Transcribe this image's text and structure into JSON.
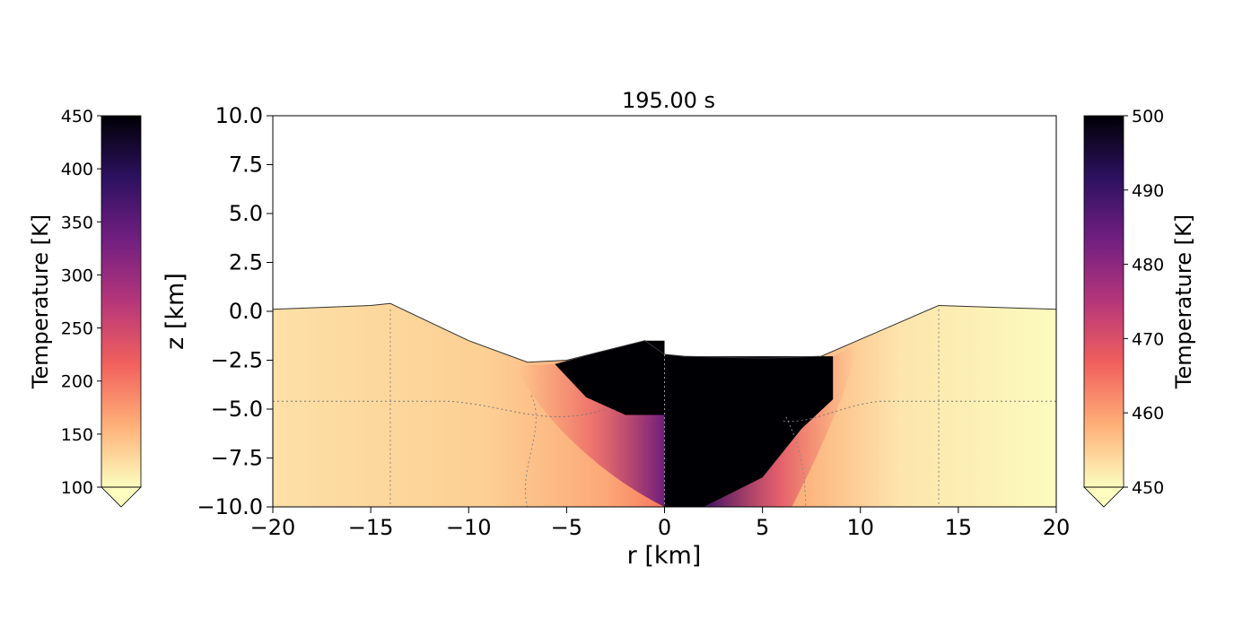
{
  "chart_data": {
    "type": "heatmap",
    "title": "195.00 s",
    "xlabel": "r [km]",
    "ylabel": "z [km]",
    "xlim": [
      -20,
      20
    ],
    "ylim": [
      -10,
      10
    ],
    "x_ticks": [
      -20,
      -15,
      -10,
      -5,
      0,
      5,
      10,
      15,
      20
    ],
    "x_tick_labels": [
      "−20",
      "−15",
      "−10",
      "−5",
      "0",
      "5",
      "10",
      "15",
      "20"
    ],
    "y_ticks": [
      10.0,
      7.5,
      5.0,
      2.5,
      0.0,
      -2.5,
      -5.0,
      -7.5,
      -10.0
    ],
    "y_tick_labels": [
      "10.0",
      "7.5",
      "5.0",
      "2.5",
      "0.0",
      "−2.5",
      "−5.0",
      "−7.5",
      "−10.0"
    ],
    "grid": false,
    "colormap": [
      "#fcfdbf",
      "#feb078",
      "#f1605d",
      "#b5367a",
      "#721f81",
      "#2d1160",
      "#000004"
    ],
    "colorbars": [
      {
        "side": "left",
        "label": "Temperature [K]",
        "range": [
          100,
          450
        ],
        "ticks": [
          450,
          400,
          350,
          300,
          250,
          200,
          150,
          100
        ],
        "applies_to": "r < 0"
      },
      {
        "side": "right",
        "label": "Temperature [K]",
        "range": [
          450,
          500
        ],
        "ticks": [
          500,
          490,
          480,
          470,
          460,
          450
        ],
        "applies_to": "r > 0"
      }
    ],
    "surface_profile": {
      "r": [
        -20,
        -15,
        -14,
        -10,
        -7,
        -5,
        -3,
        -1,
        0,
        1,
        5,
        8,
        11,
        14,
        20
      ],
      "z": [
        0.1,
        0.3,
        0.4,
        -1.5,
        -2.6,
        -2.5,
        -2.0,
        -1.5,
        -2.2,
        -2.3,
        -2.4,
        -2.3,
        -1.0,
        0.3,
        0.1
      ]
    },
    "hot_region_boundary": {
      "r": [
        -5.6,
        -4,
        -2,
        0,
        0,
        2,
        5,
        7,
        8.6
      ],
      "z": [
        -2.7,
        -4.4,
        -5.3,
        -5.3,
        -10,
        -10,
        -8.5,
        -6,
        -4.5
      ]
    },
    "dashed_contours": {
      "horizontal_z": -4.6,
      "vertical_r": [
        -14,
        14
      ]
    }
  }
}
